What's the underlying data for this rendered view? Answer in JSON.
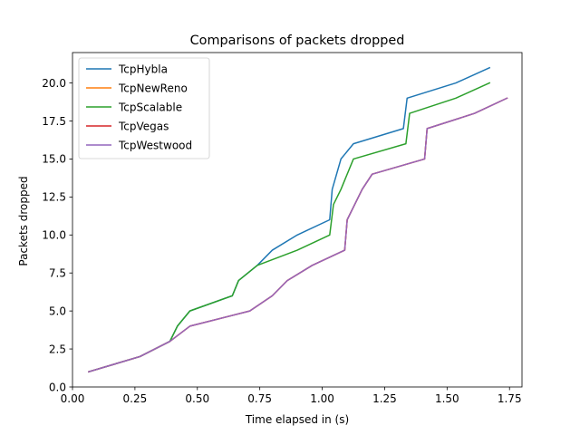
{
  "chart_data": {
    "type": "line",
    "title": "Comparisons of packets dropped",
    "xlabel": "Time elapsed in (s)",
    "ylabel": "Packets dropped",
    "xlim": [
      0.0,
      1.8
    ],
    "ylim": [
      0.0,
      22.0
    ],
    "xticks": [
      0.0,
      0.25,
      0.5,
      0.75,
      1.0,
      1.25,
      1.5,
      1.75
    ],
    "xtick_labels": [
      "0.00",
      "0.25",
      "0.50",
      "0.75",
      "1.00",
      "1.25",
      "1.50",
      "1.75"
    ],
    "yticks": [
      0.0,
      2.5,
      5.0,
      7.5,
      10.0,
      12.5,
      15.0,
      17.5,
      20.0
    ],
    "ytick_labels": [
      "0.0",
      "2.5",
      "5.0",
      "7.5",
      "10.0",
      "12.5",
      "15.0",
      "17.5",
      "20.0"
    ],
    "grid": false,
    "legend_position": "top-left",
    "series": [
      {
        "name": "TcpHybla",
        "color": "#1f77b4",
        "x": [
          0.065,
          0.27,
          0.39,
          0.42,
          0.47,
          0.64,
          0.665,
          0.74,
          0.8,
          0.9,
          1.03,
          1.04,
          1.075,
          1.125,
          1.325,
          1.34,
          1.535,
          1.67
        ],
        "y": [
          1,
          2,
          3,
          4,
          5,
          6,
          7,
          8,
          9,
          10,
          11,
          13,
          15,
          16,
          17,
          19,
          20,
          21
        ]
      },
      {
        "name": "TcpNewReno",
        "color": "#ff7f0e",
        "x": [
          0.065,
          0.27,
          0.39,
          0.47,
          0.71,
          0.8,
          0.86,
          0.96,
          1.09,
          1.1,
          1.13,
          1.16,
          1.2,
          1.41,
          1.42,
          1.61,
          1.74
        ],
        "y": [
          1,
          2,
          3,
          4,
          5,
          6,
          7,
          8,
          9,
          11,
          12,
          13,
          14,
          15,
          17,
          18,
          19
        ]
      },
      {
        "name": "TcpScalable",
        "color": "#2ca02c",
        "x": [
          0.065,
          0.27,
          0.39,
          0.42,
          0.47,
          0.64,
          0.665,
          0.74,
          0.9,
          1.03,
          1.045,
          1.075,
          1.125,
          1.335,
          1.35,
          1.535,
          1.67
        ],
        "y": [
          1,
          2,
          3,
          4,
          5,
          6,
          7,
          8,
          9,
          10,
          12,
          13,
          15,
          16,
          18,
          19,
          20
        ]
      },
      {
        "name": "TcpVegas",
        "color": "#d62728",
        "x": [
          0.065,
          0.27,
          0.39,
          0.47,
          0.71,
          0.8,
          0.86,
          0.96,
          1.09,
          1.1,
          1.13,
          1.16,
          1.2,
          1.41,
          1.42,
          1.61,
          1.74
        ],
        "y": [
          1,
          2,
          3,
          4,
          5,
          6,
          7,
          8,
          9,
          11,
          12,
          13,
          14,
          15,
          17,
          18,
          19
        ]
      },
      {
        "name": "TcpWestwood",
        "color": "#9467bd",
        "x": [
          0.065,
          0.27,
          0.39,
          0.47,
          0.71,
          0.8,
          0.86,
          0.96,
          1.09,
          1.1,
          1.13,
          1.16,
          1.2,
          1.41,
          1.42,
          1.61,
          1.74
        ],
        "y": [
          1,
          2,
          3,
          4,
          5,
          6,
          7,
          8,
          9,
          11,
          12,
          13,
          14,
          15,
          17,
          18,
          19
        ]
      }
    ]
  }
}
